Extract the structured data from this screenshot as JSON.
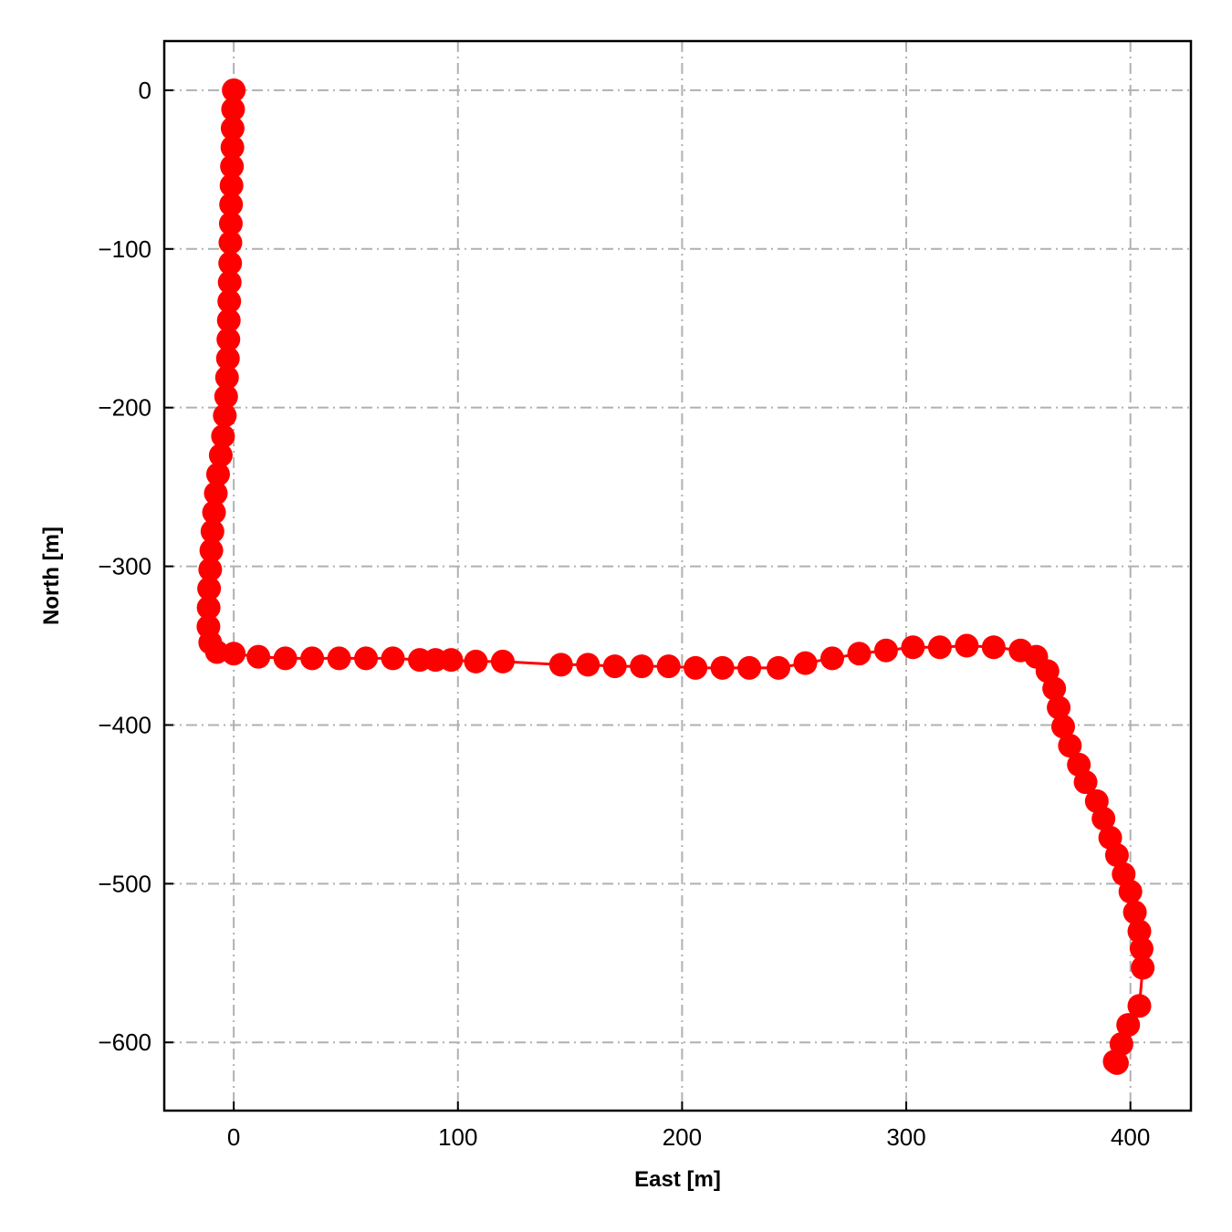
{
  "chart_data": {
    "type": "line",
    "xlabel": "East [m]",
    "ylabel": "North [m]",
    "xlim": [
      -31,
      427
    ],
    "ylim": [
      -643,
      31
    ],
    "xticks": [
      0,
      100,
      200,
      300,
      400
    ],
    "yticks": [
      0,
      -100,
      -200,
      -300,
      -400,
      -500,
      -600
    ],
    "xtick_labels": [
      "0",
      "100",
      "200",
      "300",
      "400"
    ],
    "ytick_labels": [
      "0",
      "−100",
      "−200",
      "−300",
      "−400",
      "−500",
      "−600"
    ],
    "grid": true,
    "color": "#ff0000",
    "marker": "circle",
    "series": [
      {
        "x": [
          0,
          -0.3,
          -0.5,
          -0.6,
          -0.8,
          -1,
          -1.2,
          -1.3,
          -1.5,
          -1.6,
          -1.8,
          -2,
          -2.2,
          -2.4,
          -2.6,
          -3,
          -3.4,
          -4,
          -4.8,
          -5.8,
          -7,
          -8,
          -8.8,
          -9.5,
          -10,
          -10.5,
          -11,
          -11.2,
          -11.3,
          -10.5,
          -7.5,
          0,
          11,
          23,
          35,
          47,
          59,
          71,
          83,
          90,
          97,
          108,
          120,
          146,
          158,
          170,
          182,
          194,
          206,
          218,
          230,
          243,
          255,
          267,
          279,
          291,
          303,
          315,
          327,
          339,
          351,
          358,
          363,
          366,
          368,
          370,
          373,
          377,
          380,
          385,
          388,
          391,
          394,
          397,
          400,
          402,
          404,
          405,
          405.5,
          404,
          399,
          396,
          394,
          393
        ],
        "y": [
          0,
          -12,
          -24,
          -36,
          -48,
          -60,
          -72,
          -84,
          -96,
          -109,
          -121,
          -133,
          -145,
          -157,
          -169,
          -181,
          -193,
          -205,
          -218,
          -230,
          -242,
          -254,
          -266,
          -278,
          -290,
          -302,
          -314,
          -326,
          -338,
          -348,
          -354,
          -355,
          -357,
          -358,
          -358,
          -358,
          -358,
          -358,
          -359,
          -359,
          -359,
          -360,
          -360,
          -362,
          -362,
          -363,
          -363,
          -363,
          -364,
          -364,
          -364,
          -364,
          -361,
          -358,
          -355,
          -353,
          -351,
          -351,
          -350,
          -351,
          -353,
          -357,
          -366,
          -377,
          -389,
          -401,
          -413,
          -425,
          -436,
          -448,
          -459,
          -471,
          -482,
          -494,
          -505,
          -518,
          -530,
          -541,
          -553,
          -577,
          -589,
          -601,
          -613,
          -612
        ]
      }
    ]
  }
}
